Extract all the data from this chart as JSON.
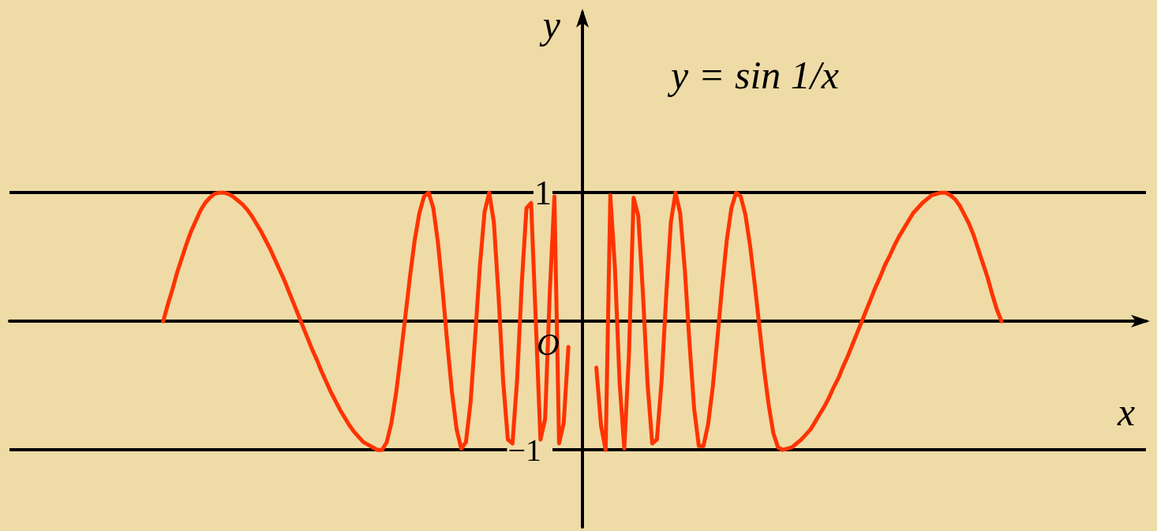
{
  "chart_data": {
    "type": "line",
    "xlabel": "x",
    "ylabel": "y",
    "annotations": [
      "y = sin 1/x",
      "O"
    ],
    "color": "#ff3300",
    "tick_labels": "y",
    "ylim": [
      -1.6,
      2.4
    ],
    "yticks": [
      1,
      {
        "value": -1,
        "label": "−1"
      }
    ],
    "ref_lines": [
      {
        "axis": "y",
        "value": 1,
        "color": "#000000"
      },
      {
        "axis": "y",
        "value": -1,
        "color": "#000000"
      }
    ],
    "categories": [
      null,
      null,
      null,
      null,
      null,
      null,
      null,
      null,
      null,
      null,
      null,
      null,
      null,
      null,
      null,
      null,
      null,
      null,
      null,
      null,
      null,
      null,
      null,
      null,
      null,
      null,
      null,
      null,
      null,
      null,
      null,
      null,
      null,
      null,
      null,
      null,
      null,
      null,
      null,
      null,
      null,
      null,
      null,
      null,
      null,
      null,
      null,
      null,
      null,
      null,
      null,
      null,
      null,
      null,
      null,
      null,
      null,
      null,
      null,
      null,
      null,
      null,
      null,
      null,
      null,
      null,
      null,
      null,
      null,
      null,
      null,
      null,
      null,
      null,
      null,
      null,
      null,
      null,
      null,
      null,
      null,
      null,
      null,
      null,
      null,
      null,
      null,
      null,
      null,
      null,
      null,
      null,
      null,
      null,
      null,
      null,
      null,
      null,
      null,
      null,
      null,
      null,
      null,
      null,
      null,
      null,
      null,
      null,
      null,
      null,
      null,
      null,
      null,
      null,
      null,
      null,
      null,
      null,
      null,
      null,
      null,
      null,
      null,
      null,
      null,
      null,
      null,
      null,
      null,
      null,
      null,
      null,
      null,
      null,
      null,
      null,
      null,
      null,
      null,
      null,
      null,
      null,
      null,
      null,
      null,
      null,
      null,
      null,
      null,
      null,
      null,
      null,
      null,
      null,
      null,
      null,
      null,
      null,
      null,
      null,
      null,
      null,
      null,
      null,
      null,
      null,
      null,
      null,
      null,
      null,
      null,
      null,
      null,
      null,
      null,
      null,
      null,
      null,
      null,
      null,
      null,
      null,
      null,
      null,
      null,
      null,
      null,
      null,
      null,
      null,
      null,
      null,
      null,
      null,
      null,
      null,
      null,
      null,
      null,
      null,
      null,
      null,
      null,
      null,
      null,
      null,
      null,
      null,
      null,
      null,
      null,
      null,
      null,
      null,
      null,
      null,
      null,
      null,
      null,
      null,
      null,
      null,
      null,
      null,
      null,
      null,
      null,
      null,
      null,
      null,
      null,
      null,
      null,
      null,
      null,
      null,
      null,
      null,
      null,
      null,
      null,
      null,
      null,
      null,
      null
    ],
    "values": [
      null,
      null,
      null,
      null,
      null,
      null,
      null,
      null,
      null,
      null,
      null,
      null,
      null,
      null,
      null,
      null,
      null,
      null,
      null,
      null,
      null,
      null,
      null,
      null,
      null,
      null,
      null,
      null,
      null,
      null,
      null,
      null,
      null,
      0,
      0.13,
      0.25,
      0.38,
      0.49,
      0.6,
      0.7,
      0.78,
      0.86,
      0.92,
      0.96,
      0.99,
      1,
      1,
      0.99,
      0.97,
      0.94,
      0.91,
      0.87,
      0.82,
      0.76,
      0.7,
      0.63,
      0.56,
      0.48,
      0.4,
      0.32,
      0.23,
      0.14,
      0.05,
      -0.04,
      -0.13,
      -0.22,
      -0.3,
      -0.39,
      -0.47,
      -0.55,
      -0.62,
      -0.69,
      -0.75,
      -0.81,
      -0.86,
      -0.9,
      -0.94,
      -0.96,
      -0.98,
      -1,
      -1,
      -0.94,
      -0.79,
      -0.56,
      -0.27,
      0.04,
      0.35,
      0.63,
      0.84,
      0.97,
      1,
      0.88,
      0.61,
      0.24,
      -0.17,
      -0.55,
      -0.84,
      -0.99,
      -0.94,
      -0.63,
      -0.11,
      0.43,
      0.85,
      1,
      0.77,
      0.2,
      -0.47,
      -0.92,
      -0.95,
      -0.45,
      0.3,
      0.88,
      0.92,
      0,
      -0.92,
      -0.76,
      0.22,
      0.97,
      -0.95,
      -0.79,
      -0.2,
      null,
      null,
      null,
      null,
      null,
      -0.36,
      -0.81,
      -1,
      0.98,
      0.41,
      -0.48,
      -0.99,
      -0.26,
      0.96,
      0.82,
      0.22,
      -0.49,
      -0.95,
      -0.92,
      -0.47,
      0.2,
      0.77,
      1,
      0.84,
      0.4,
      -0.17,
      -0.68,
      -0.97,
      -0.97,
      -0.8,
      -0.51,
      -0.13,
      0.27,
      0.63,
      0.88,
      1,
      0.97,
      0.83,
      0.59,
      0.29,
      -0.04,
      -0.37,
      -0.65,
      -0.87,
      -0.98,
      -1,
      -0.99,
      -0.98,
      -0.95,
      -0.92,
      -0.88,
      -0.84,
      -0.78,
      -0.72,
      -0.66,
      -0.59,
      -0.51,
      -0.44,
      -0.35,
      -0.27,
      -0.18,
      -0.09,
      0,
      0.09,
      0.18,
      0.27,
      0.35,
      0.44,
      0.51,
      0.59,
      0.66,
      0.72,
      0.78,
      0.84,
      0.88,
      0.92,
      0.95,
      0.98,
      0.99,
      1,
      1,
      0.98,
      0.95,
      0.9,
      0.83,
      0.76,
      0.67,
      0.56,
      0.45,
      0.34,
      0.21,
      0.09,
      0,
      null,
      null,
      null,
      null,
      null,
      null,
      null,
      null,
      null,
      null,
      null,
      null,
      null,
      null,
      null,
      null,
      null,
      null,
      null,
      null,
      null,
      null,
      null,
      null,
      null,
      null,
      null,
      null,
      null,
      null,
      null
    ]
  }
}
